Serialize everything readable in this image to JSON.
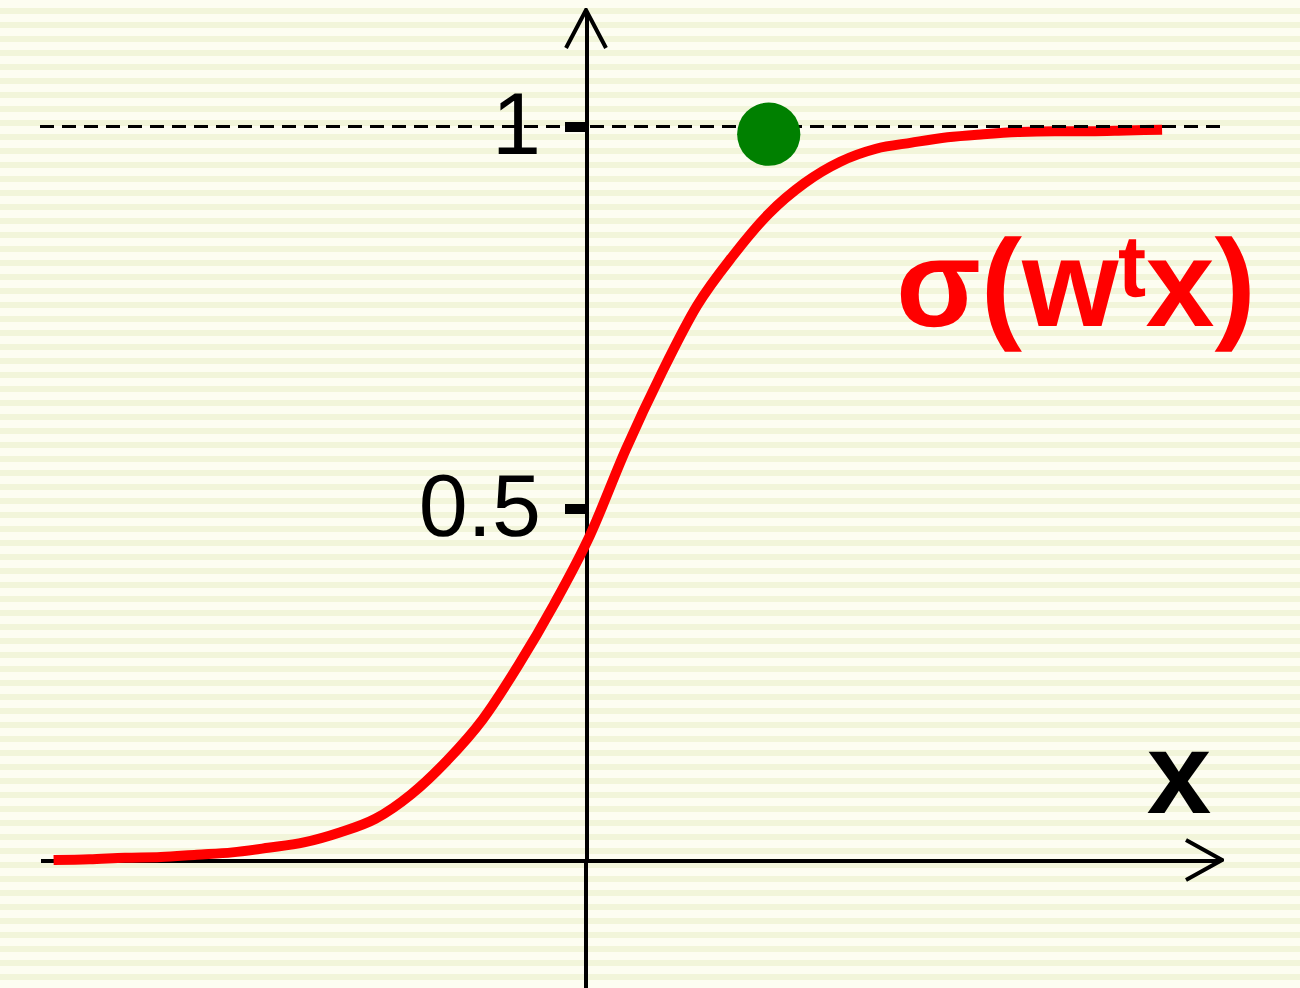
{
  "chart_data": {
    "type": "line",
    "categories": [
      null,
      null,
      null,
      null,
      null,
      null,
      null,
      null,
      null,
      null,
      null,
      null,
      null,
      null,
      null,
      null,
      null,
      null,
      null,
      null,
      null,
      null,
      null,
      null,
      null,
      null,
      null,
      null,
      null,
      null,
      null,
      null
    ],
    "series": [
      {
        "name": "σ(wᵗx)",
        "color": "#ff0000",
        "values": [
          0.04,
          0.041,
          0.043,
          0.044,
          0.047,
          0.05,
          0.056,
          0.063,
          0.076,
          0.094,
          0.126,
          0.17,
          0.224,
          0.295,
          0.375,
          0.465,
          0.577,
          0.677,
          0.766,
          0.831,
          0.886,
          0.926,
          0.954,
          0.971,
          0.979,
          0.986,
          0.99,
          0.993,
          0.994,
          0.994,
          0.995,
          0.996
        ]
      },
      {
        "type": "scatter",
        "color": "#008000",
        "marker": "circle",
        "values": [
          null,
          null,
          null,
          null,
          null,
          null,
          null,
          null,
          null,
          null,
          null,
          null,
          null,
          null,
          null,
          null,
          null,
          null,
          null,
          null,
          0.99,
          null,
          null,
          null,
          null,
          null,
          null,
          null,
          null,
          null,
          null,
          null
        ]
      }
    ],
    "xlabel": "x",
    "ylim": [
      0.04,
      1.15
    ],
    "yticks": [
      0.5,
      1
    ],
    "ref_lines": [
      {
        "axis": "y",
        "value": 1,
        "color": "#000000",
        "line_style": "dashed"
      }
    ],
    "tick_labels": "y"
  }
}
